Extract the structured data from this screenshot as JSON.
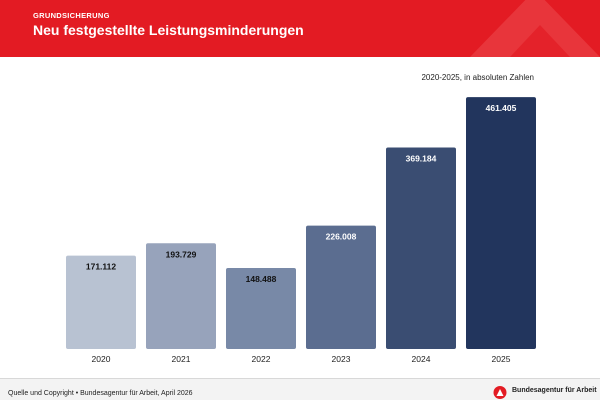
{
  "header": {
    "overline": "GRUNDSICHERUNG",
    "title": "Neu festgestellte Leistungsminderungen"
  },
  "chart_data": {
    "type": "bar",
    "subtitle": "2020-2025, in absoluten Zahlen",
    "categories": [
      "2020",
      "2021",
      "2022",
      "2023",
      "2024",
      "2025"
    ],
    "values": [
      171112,
      193729,
      148488,
      226008,
      369184,
      461405
    ],
    "value_labels": [
      "171.112",
      "193.729",
      "148.488",
      "226.008",
      "369.184",
      "461.405"
    ],
    "colors": [
      "#b8c2d2",
      "#97a3bb",
      "#7889a7",
      "#5b6d90",
      "#3a4d72",
      "#22355d"
    ],
    "label_colors": [
      "#111111",
      "#111111",
      "#111111",
      "#ffffff",
      "#ffffff",
      "#ffffff"
    ],
    "ylim": [
      0,
      480000
    ],
    "grid": false,
    "legend": "none"
  },
  "footer": {
    "source": "Quelle und Copyright • Bundesagentur für Arbeit, April 2026",
    "logo_text": "Bundesagentur für Arbeit"
  },
  "brand_colors": {
    "header_red": "#e31b23",
    "logo_red": "#e31b23"
  }
}
